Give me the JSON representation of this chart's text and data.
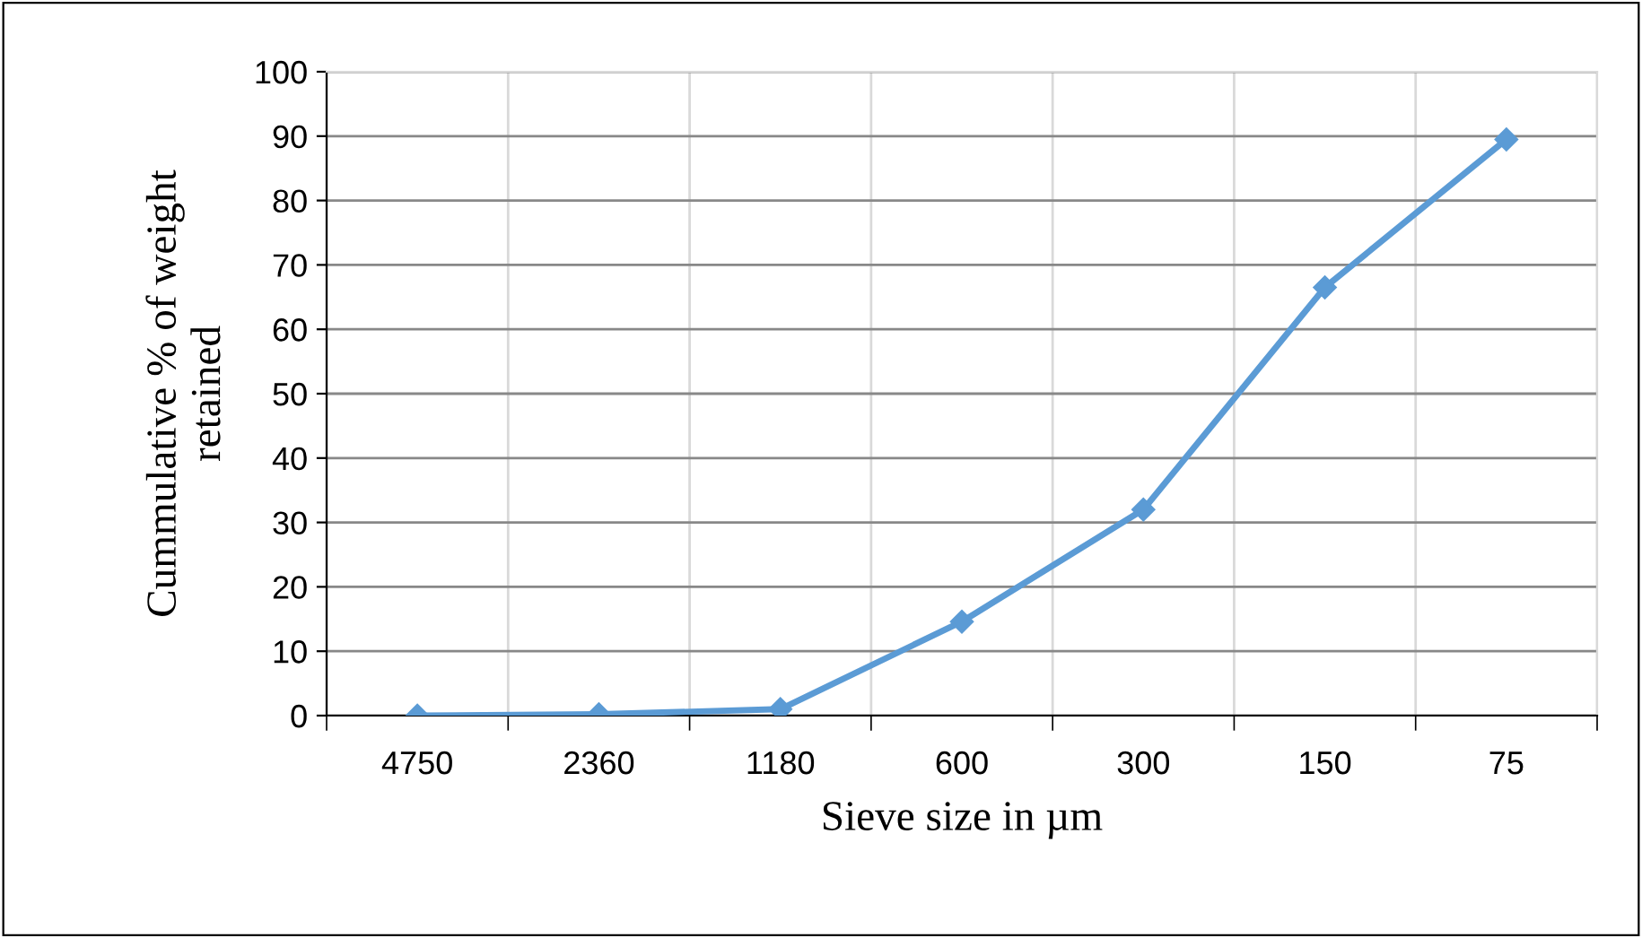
{
  "chart_data": {
    "type": "line",
    "xlabel": "Sieve size in µm",
    "ylabel": "Cummulative % of weight\nretained",
    "categories": [
      "4750",
      "2360",
      "1180",
      "600",
      "300",
      "150",
      "75"
    ],
    "series": [
      {
        "color": "#5b9bd5",
        "values": [
          0,
          0.2,
          1,
          14.6,
          32,
          66.5,
          89.5
        ]
      }
    ],
    "ylim": [
      0,
      100
    ],
    "yticks": [
      0,
      10,
      20,
      30,
      40,
      50,
      60,
      70,
      80,
      90,
      100
    ],
    "grid": true,
    "marker": "diamond",
    "line_style": "solid",
    "legend": false
  }
}
